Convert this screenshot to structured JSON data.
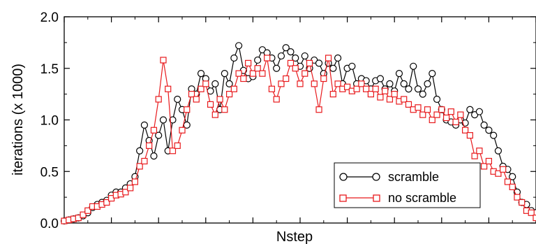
{
  "chart_data": {
    "type": "line",
    "title": "",
    "xlabel": "Nstep",
    "ylabel": "iterations (x 1000)",
    "ylim": [
      0,
      2.0
    ],
    "y_ticks": [
      "0.0",
      "0.5",
      "1.0",
      "1.5",
      "2.0"
    ],
    "x_ticks_labeled": false,
    "xlim": [
      0,
      100
    ],
    "grid": false,
    "legend_position": "bottom-right",
    "series": [
      {
        "name": "scramble",
        "marker": "circle",
        "color": "#000000",
        "x": [
          0,
          1,
          2,
          3,
          4,
          5,
          6,
          7,
          8,
          9,
          10,
          11,
          12,
          13,
          14,
          15,
          16,
          17,
          18,
          19,
          20,
          21,
          22,
          23,
          24,
          25,
          26,
          27,
          28,
          29,
          30,
          31,
          32,
          33,
          34,
          35,
          36,
          37,
          38,
          39,
          40,
          41,
          42,
          43,
          44,
          45,
          46,
          47,
          48,
          49,
          50,
          51,
          52,
          53,
          54,
          55,
          56,
          57,
          58,
          59,
          60,
          61,
          62,
          63,
          64,
          65,
          66,
          67,
          68,
          69,
          70,
          71,
          72,
          73,
          74,
          75,
          76,
          77,
          78,
          79,
          80,
          81,
          82,
          83,
          84,
          85,
          86,
          87,
          88,
          89,
          90,
          91,
          92,
          93,
          94,
          95,
          96,
          97,
          98,
          99,
          100
        ],
        "values": [
          0.02,
          0.03,
          0.04,
          0.05,
          0.07,
          0.1,
          0.15,
          0.18,
          0.2,
          0.22,
          0.27,
          0.3,
          0.3,
          0.34,
          0.38,
          0.45,
          0.7,
          0.95,
          0.8,
          0.65,
          0.85,
          1.0,
          0.7,
          1.0,
          1.2,
          1.1,
          0.95,
          1.3,
          1.25,
          1.45,
          1.4,
          1.28,
          1.35,
          1.1,
          1.45,
          1.35,
          1.6,
          1.72,
          1.48,
          1.4,
          1.42,
          1.58,
          1.68,
          1.65,
          1.6,
          1.5,
          1.62,
          1.7,
          1.66,
          1.6,
          1.52,
          1.62,
          1.5,
          1.58,
          1.55,
          1.45,
          1.55,
          1.5,
          1.6,
          1.35,
          1.5,
          1.52,
          1.35,
          1.4,
          1.38,
          1.3,
          1.38,
          1.4,
          1.3,
          1.35,
          1.28,
          1.45,
          1.35,
          1.3,
          1.52,
          1.3,
          1.25,
          1.35,
          1.45,
          1.2,
          1.1,
          1.0,
          0.98,
          0.95,
          1.0,
          0.97,
          1.1,
          1.05,
          1.08,
          0.95,
          0.9,
          0.85,
          0.7,
          0.55,
          0.52,
          0.45,
          0.3,
          0.2,
          0.18,
          0.12,
          0.1
        ]
      },
      {
        "name": "no scramble",
        "marker": "square",
        "color": "#e8191c",
        "x": [
          0,
          1,
          2,
          3,
          4,
          5,
          6,
          7,
          8,
          9,
          10,
          11,
          12,
          13,
          14,
          15,
          16,
          17,
          18,
          19,
          20,
          21,
          22,
          23,
          24,
          25,
          26,
          27,
          28,
          29,
          30,
          31,
          32,
          33,
          34,
          35,
          36,
          37,
          38,
          39,
          40,
          41,
          42,
          43,
          44,
          45,
          46,
          47,
          48,
          49,
          50,
          51,
          52,
          53,
          54,
          55,
          56,
          57,
          58,
          59,
          60,
          61,
          62,
          63,
          64,
          65,
          66,
          67,
          68,
          69,
          70,
          71,
          72,
          73,
          74,
          75,
          76,
          77,
          78,
          79,
          80,
          81,
          82,
          83,
          84,
          85,
          86,
          87,
          88,
          89,
          90,
          91,
          92,
          93,
          94,
          95,
          96,
          97,
          98,
          99,
          100
        ],
        "values": [
          0.02,
          0.03,
          0.04,
          0.05,
          0.08,
          0.12,
          0.16,
          0.16,
          0.18,
          0.2,
          0.24,
          0.27,
          0.28,
          0.3,
          0.34,
          0.4,
          0.55,
          0.6,
          0.75,
          0.9,
          1.2,
          1.58,
          1.3,
          0.7,
          0.75,
          0.9,
          1.1,
          1.25,
          1.2,
          1.3,
          1.35,
          1.15,
          1.05,
          1.2,
          1.1,
          1.25,
          1.3,
          1.45,
          1.4,
          1.55,
          1.45,
          1.5,
          1.45,
          1.6,
          1.3,
          1.2,
          1.35,
          1.4,
          1.55,
          1.5,
          1.35,
          1.45,
          1.55,
          1.35,
          1.1,
          1.4,
          1.6,
          1.25,
          1.35,
          1.3,
          1.32,
          1.28,
          1.3,
          1.35,
          1.3,
          1.25,
          1.3,
          1.22,
          1.28,
          1.2,
          1.25,
          1.18,
          1.2,
          1.15,
          1.1,
          1.12,
          1.05,
          1.1,
          1.0,
          1.05,
          1.1,
          1.02,
          1.08,
          0.98,
          1.05,
          0.9,
          0.85,
          0.65,
          0.7,
          0.55,
          0.6,
          0.5,
          0.48,
          0.52,
          0.4,
          0.35,
          0.25,
          0.2,
          0.12,
          0.1,
          0.05
        ]
      }
    ]
  }
}
